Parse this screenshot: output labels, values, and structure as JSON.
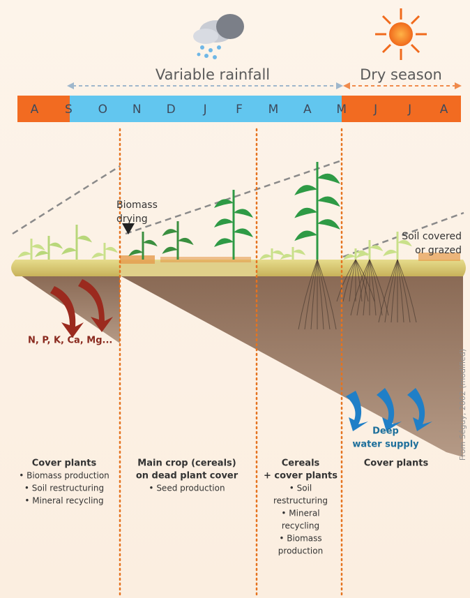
{
  "seasons": {
    "rainy": "Variable rainfall",
    "dry": "Dry season"
  },
  "months": [
    "A",
    "S",
    "O",
    "N",
    "D",
    "J",
    "F",
    "M",
    "A",
    "M",
    "J",
    "J",
    "A"
  ],
  "annotations": {
    "biomass_drying": [
      "Biomass",
      "drying"
    ],
    "soil_covered": [
      "Soil covered",
      "or grazed"
    ],
    "minerals": "N, P, K, Ca, Mg...",
    "deep_water": [
      "Deep",
      "water supply"
    ],
    "credit": "From Séguy, 2002 (modified)"
  },
  "columns": [
    {
      "title": [
        "Cover plants"
      ],
      "items": [
        "• Biomass production",
        "• Soil restructuring",
        "• Mineral recycling"
      ]
    },
    {
      "title": [
        "Main crop (cereals)",
        "on dead plant cover"
      ],
      "items": [
        "• Seed production"
      ]
    },
    {
      "title": [
        "Cereals",
        "+ cover plants"
      ],
      "items": [
        "• Soil",
        "restructuring",
        "• Mineral",
        "recycling",
        "• Biomass",
        "production"
      ]
    },
    {
      "title": [
        "Cover plants"
      ],
      "items": []
    }
  ]
}
